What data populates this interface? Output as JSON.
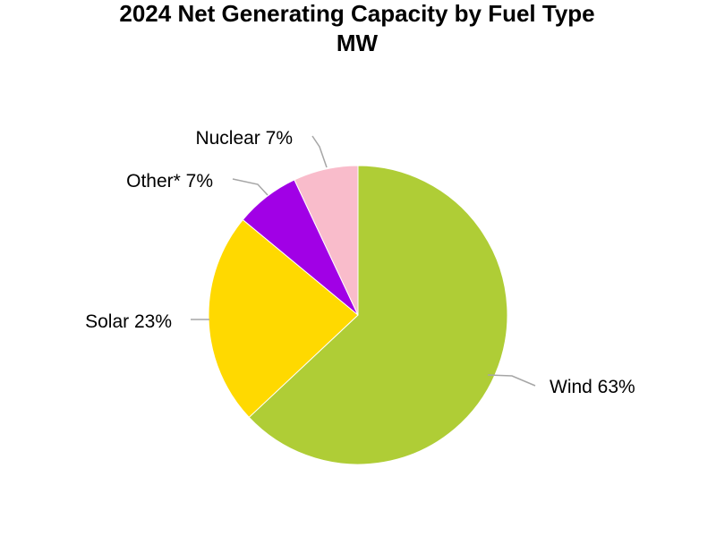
{
  "chart_data": {
    "type": "pie",
    "title": "2024 Net Generating Capacity by Fuel Type",
    "subtitle": "MW",
    "categories": [
      "Wind",
      "Solar",
      "Other*",
      "Nuclear"
    ],
    "values": [
      63,
      23,
      7,
      7
    ],
    "label_texts": [
      "Wind 63%",
      "Solar 23%",
      "Other* 7%",
      "Nuclear 7%"
    ],
    "colors": [
      "#afcd36",
      "#ffd900",
      "#a100e6",
      "#f9bccb"
    ],
    "start": "12 o'clock",
    "direction": "clockwise",
    "legend": "none"
  }
}
